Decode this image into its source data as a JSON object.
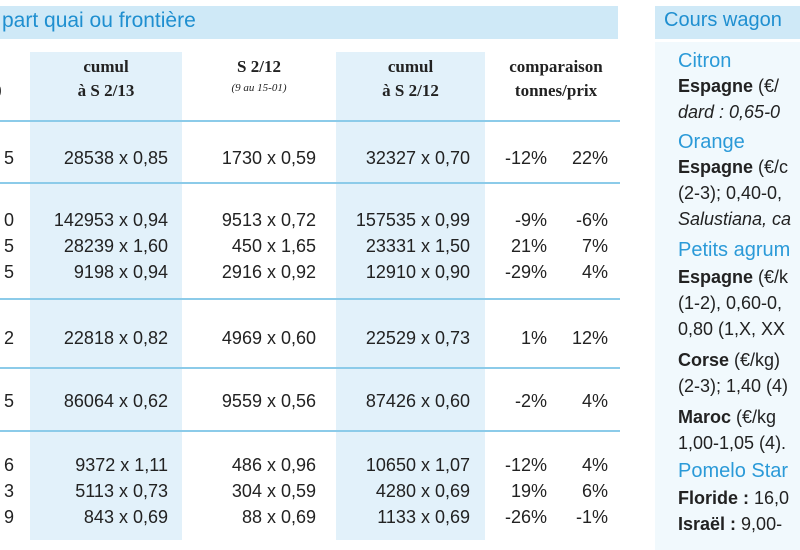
{
  "left_panel": {
    "title": "part quai ou frontière",
    "header_left_fragment": ")",
    "columns": [
      {
        "title": "cumul",
        "title2": "à S 2/13",
        "sub": ""
      },
      {
        "title": "S 2/12",
        "title2": "",
        "sub": "(9 au 15-01)"
      },
      {
        "title": "cumul",
        "title2": "à S 2/12",
        "sub": ""
      },
      {
        "title": "comparaison",
        "title2": "tonnes/prix",
        "sub": ""
      }
    ],
    "rows": [
      {
        "frag": "5",
        "cumul13": "28538 x 0,85",
        "s212": "1730 x 0,59",
        "cumul12": "32327 x 0,70",
        "pct_t": "-12%",
        "pct_p": "22%"
      },
      {
        "frag": "0",
        "cumul13": "142953 x 0,94",
        "s212": "9513 x 0,72",
        "cumul12": "157535 x 0,99",
        "pct_t": "-9%",
        "pct_p": "-6%"
      },
      {
        "frag": "5",
        "cumul13": "28239 x 1,60",
        "s212": "450 x 1,65",
        "cumul12": "23331 x 1,50",
        "pct_t": "21%",
        "pct_p": "7%"
      },
      {
        "frag": "5",
        "cumul13": "9198 x 0,94",
        "s212": "2916 x 0,92",
        "cumul12": "12910 x 0,90",
        "pct_t": "-29%",
        "pct_p": "4%"
      },
      {
        "frag": "2",
        "cumul13": "22818 x 0,82",
        "s212": "4969 x 0,60",
        "cumul12": "22529 x 0,73",
        "pct_t": "1%",
        "pct_p": "12%"
      },
      {
        "frag": "5",
        "cumul13": "86064 x 0,62",
        "s212": "9559 x 0,56",
        "cumul12": "87426 x 0,60",
        "pct_t": "-2%",
        "pct_p": "4%"
      },
      {
        "frag": "6",
        "cumul13": "9372 x 1,11",
        "s212": "486 x 0,96",
        "cumul12": "10650 x 1,07",
        "pct_t": "-12%",
        "pct_p": "4%"
      },
      {
        "frag": "3",
        "cumul13": "5113 x 0,73",
        "s212": "304 x 0,59",
        "cumul12": "4280 x 0,69",
        "pct_t": "19%",
        "pct_p": "6%"
      },
      {
        "frag": "9",
        "cumul13": "843 x 0,69",
        "s212": "88 x 0,69",
        "cumul12": "1133 x 0,69",
        "pct_t": "-26%",
        "pct_p": "-1%"
      }
    ]
  },
  "right_panel": {
    "title": "Cours wagon",
    "lines": [
      {
        "text": "Citron",
        "style": "head"
      },
      {
        "text": "Espagne",
        "rest": " (€/",
        "style": "bold-lead"
      },
      {
        "text": "dard : 0,65-0",
        "style": "italic"
      },
      {
        "text": "Orange",
        "style": "head"
      },
      {
        "text": "Espagne",
        "rest": " (€/c",
        "style": "bold-lead"
      },
      {
        "text": "(2-3); 0,40-0,",
        "style": "plain"
      },
      {
        "text": "Salustiana, ca",
        "style": "italic"
      },
      {
        "text": "Petits agrum",
        "style": "head"
      },
      {
        "text": "Espagne",
        "rest": " (€/k",
        "style": "bold-lead"
      },
      {
        "text": "(1-2), 0,60-0,",
        "style": "plain"
      },
      {
        "text": "0,80 (1,X, XX",
        "style": "plain"
      },
      {
        "text": "Corse",
        "rest": " (€/kg)",
        "style": "bold-lead"
      },
      {
        "text": "(2-3); 1,40 (4)",
        "style": "plain"
      },
      {
        "text": "Maroc",
        "rest": " (€/kg",
        "style": "bold-lead"
      },
      {
        "text": "1,00-1,05 (4).",
        "style": "plain"
      },
      {
        "text": "Pomelo Star",
        "style": "head"
      },
      {
        "text": "Floride :",
        "rest": " 16,0",
        "style": "bold-lead"
      },
      {
        "text": "Israël :",
        "rest": " 9,00-",
        "style": "bold-lead"
      }
    ]
  }
}
